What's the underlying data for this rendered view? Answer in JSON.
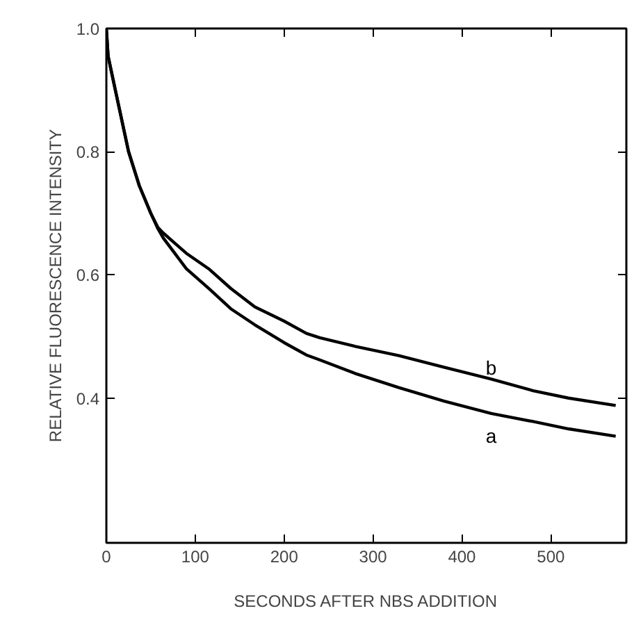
{
  "chart_data": {
    "type": "line",
    "xlabel": "SECONDS AFTER NBS ADDITION",
    "ylabel": "RELATIVE FLUORESCENCE INTENSITY",
    "xlim": [
      0,
      585
    ],
    "ylim": [
      0.165,
      1.0
    ],
    "xticks": [
      0,
      100,
      200,
      300,
      400,
      500
    ],
    "yticks": [
      {
        "value": 0.4,
        "label": "0.4"
      },
      {
        "value": 0.6,
        "label": "0.6"
      },
      {
        "value": 0.8,
        "label": "0.8"
      },
      {
        "value": 1.0,
        "label": "1.0"
      }
    ],
    "grid": false,
    "marker": "none",
    "line_style": "solid",
    "series": [
      {
        "name": "a",
        "color": "#000000",
        "x": [
          0,
          2,
          11,
          25,
          37,
          50,
          58,
          64,
          90,
          116,
          140,
          167,
          200,
          225,
          240,
          280,
          329,
          380,
          433,
          480,
          520,
          573
        ],
        "values": [
          1.0,
          0.955,
          0.894,
          0.8,
          0.745,
          0.7,
          0.675,
          0.66,
          0.61,
          0.577,
          0.545,
          0.519,
          0.49,
          0.47,
          0.462,
          0.44,
          0.417,
          0.395,
          0.375,
          0.362,
          0.35,
          0.338
        ]
      },
      {
        "name": "b",
        "color": "#000000",
        "x": [
          0,
          2,
          11,
          25,
          37,
          50,
          58,
          64,
          90,
          116,
          140,
          167,
          200,
          225,
          240,
          280,
          329,
          380,
          433,
          480,
          520,
          573
        ],
        "values": [
          1.0,
          0.955,
          0.894,
          0.8,
          0.745,
          0.7,
          0.677,
          0.668,
          0.635,
          0.609,
          0.578,
          0.548,
          0.525,
          0.505,
          0.498,
          0.484,
          0.469,
          0.45,
          0.431,
          0.412,
          0.4,
          0.388
        ]
      }
    ]
  }
}
